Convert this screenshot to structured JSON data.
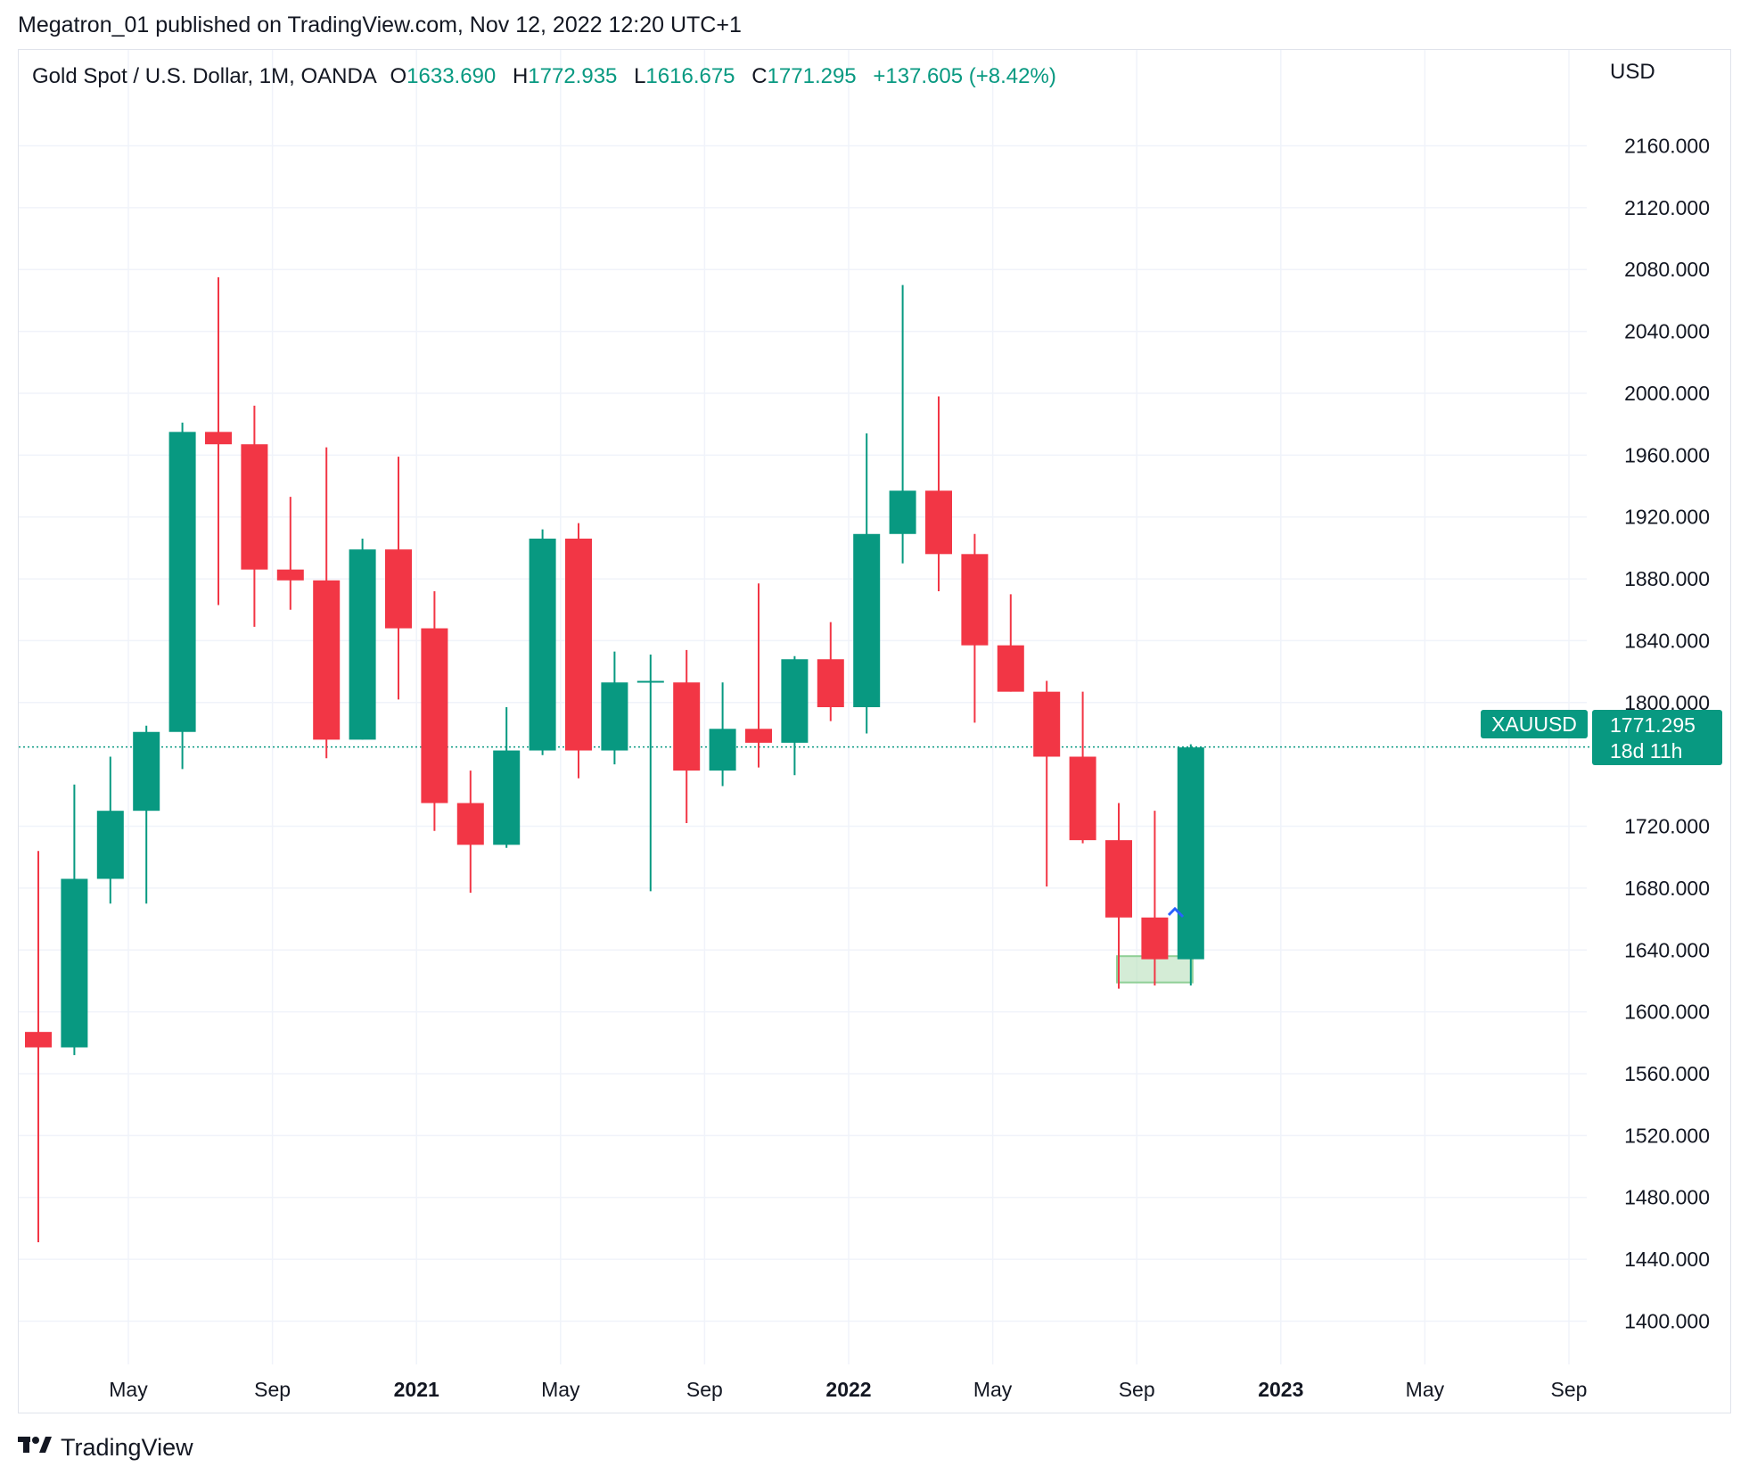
{
  "header": {
    "publish_line": "Megatron_01 published on TradingView.com, Nov 12, 2022 12:20 UTC+1"
  },
  "legend": {
    "symbol": "Gold Spot / U.S. Dollar, 1M, OANDA",
    "o_label": "O",
    "o_value": "1633.690",
    "h_label": "H",
    "h_value": "1772.935",
    "l_label": "L",
    "l_value": "1616.675",
    "c_label": "C",
    "c_value": "1771.295",
    "change": "+137.605 (+8.42%)"
  },
  "axis": {
    "currency": "USD"
  },
  "price_tag": {
    "symbol": "XAUUSD",
    "price": "1771.295",
    "countdown": "18d 11h"
  },
  "footer": {
    "logo_text": "TradingView"
  },
  "colors": {
    "up": "#089981",
    "down": "#f23645",
    "grid": "#f0f3fa",
    "zone": "#b7e0bb"
  },
  "chart_data": {
    "type": "candlestick",
    "interval": "1M",
    "ylim": [
      1372,
      2222
    ],
    "y_ticks": [
      "2160.000",
      "2120.000",
      "2080.000",
      "2040.000",
      "2000.000",
      "1960.000",
      "1920.000",
      "1880.000",
      "1840.000",
      "1800.000",
      "1720.000",
      "1680.000",
      "1640.000",
      "1600.000",
      "1560.000",
      "1520.000",
      "1480.000",
      "1440.000",
      "1400.000"
    ],
    "x_ticks": [
      {
        "label": "May",
        "index": 2.5,
        "bold": false
      },
      {
        "label": "Sep",
        "index": 6.5,
        "bold": false
      },
      {
        "label": "2021",
        "index": 10.5,
        "bold": true
      },
      {
        "label": "May",
        "index": 14.5,
        "bold": false
      },
      {
        "label": "Sep",
        "index": 18.5,
        "bold": false
      },
      {
        "label": "2022",
        "index": 22.5,
        "bold": true
      },
      {
        "label": "May",
        "index": 26.5,
        "bold": false
      },
      {
        "label": "Sep",
        "index": 30.5,
        "bold": false
      },
      {
        "label": "2023",
        "index": 34.5,
        "bold": true
      },
      {
        "label": "May",
        "index": 38.5,
        "bold": false
      },
      {
        "label": "Sep",
        "index": 42.5,
        "bold": false
      }
    ],
    "candles": [
      {
        "o": 1587,
        "h": 1704,
        "l": 1451,
        "c": 1577
      },
      {
        "o": 1577,
        "h": 1747,
        "l": 1572,
        "c": 1686
      },
      {
        "o": 1686,
        "h": 1765,
        "l": 1670,
        "c": 1730
      },
      {
        "o": 1730,
        "h": 1785,
        "l": 1670,
        "c": 1781
      },
      {
        "o": 1781,
        "h": 1981,
        "l": 1757,
        "c": 1975
      },
      {
        "o": 1975,
        "h": 2075,
        "l": 1863,
        "c": 1967
      },
      {
        "o": 1967,
        "h": 1992,
        "l": 1849,
        "c": 1886
      },
      {
        "o": 1886,
        "h": 1933,
        "l": 1860,
        "c": 1879
      },
      {
        "o": 1879,
        "h": 1965,
        "l": 1764,
        "c": 1776
      },
      {
        "o": 1776,
        "h": 1906,
        "l": 1776,
        "c": 1899
      },
      {
        "o": 1899,
        "h": 1959,
        "l": 1802,
        "c": 1848
      },
      {
        "o": 1848,
        "h": 1872,
        "l": 1717,
        "c": 1735
      },
      {
        "o": 1735,
        "h": 1756,
        "l": 1677,
        "c": 1708
      },
      {
        "o": 1708,
        "h": 1797,
        "l": 1706,
        "c": 1769
      },
      {
        "o": 1769,
        "h": 1912,
        "l": 1766,
        "c": 1906
      },
      {
        "o": 1906,
        "h": 1916,
        "l": 1751,
        "c": 1769
      },
      {
        "o": 1769,
        "h": 1833,
        "l": 1760,
        "c": 1813
      },
      {
        "o": 1813,
        "h": 1831,
        "l": 1678,
        "c": 1814
      },
      {
        "o": 1813,
        "h": 1834,
        "l": 1722,
        "c": 1756
      },
      {
        "o": 1756,
        "h": 1813,
        "l": 1746,
        "c": 1783
      },
      {
        "o": 1783,
        "h": 1877,
        "l": 1758,
        "c": 1774
      },
      {
        "o": 1774,
        "h": 1830,
        "l": 1753,
        "c": 1828
      },
      {
        "o": 1828,
        "h": 1852,
        "l": 1788,
        "c": 1797
      },
      {
        "o": 1797,
        "h": 1974,
        "l": 1780,
        "c": 1909
      },
      {
        "o": 1909,
        "h": 2070,
        "l": 1890,
        "c": 1937
      },
      {
        "o": 1937,
        "h": 1998,
        "l": 1872,
        "c": 1896
      },
      {
        "o": 1896,
        "h": 1909,
        "l": 1787,
        "c": 1837
      },
      {
        "o": 1837,
        "h": 1870,
        "l": 1807,
        "c": 1807
      },
      {
        "o": 1807,
        "h": 1814,
        "l": 1681,
        "c": 1765
      },
      {
        "o": 1765,
        "h": 1807,
        "l": 1709,
        "c": 1711
      },
      {
        "o": 1711,
        "h": 1735,
        "l": 1615,
        "c": 1661
      },
      {
        "o": 1661,
        "h": 1730,
        "l": 1617,
        "c": 1634
      },
      {
        "o": 1634,
        "h": 1773,
        "l": 1617,
        "c": 1771
      }
    ],
    "last_price": 1771.295,
    "zone": {
      "start_index": 30,
      "end_index": 32,
      "low": 1619,
      "high": 1636
    }
  }
}
